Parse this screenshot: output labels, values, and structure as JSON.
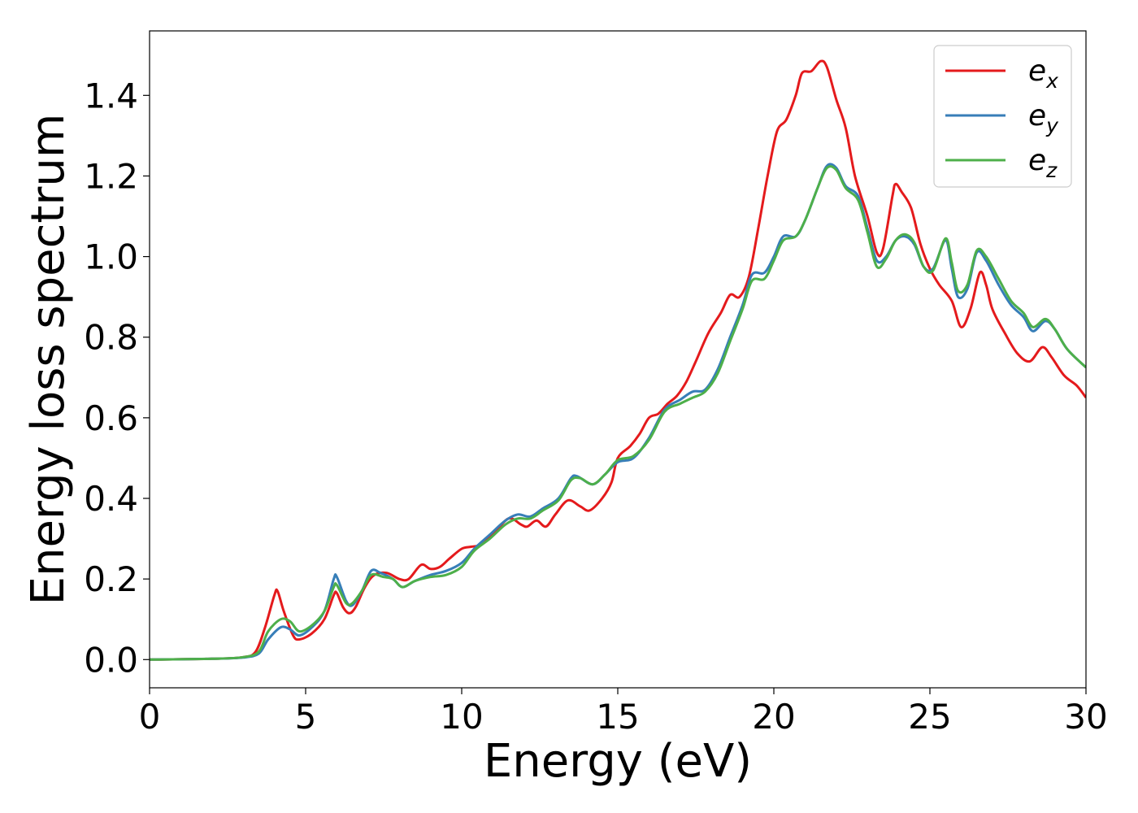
{
  "chart_data": {
    "type": "line",
    "title": "",
    "xlabel": "Energy (eV)",
    "ylabel": "Energy loss spectrum",
    "xlim": [
      0,
      30
    ],
    "ylim": [
      -0.07,
      1.56
    ],
    "xticks": [
      0,
      5,
      10,
      15,
      20,
      25,
      30
    ],
    "xtick_labels": [
      "0",
      "5",
      "10",
      "15",
      "20",
      "25",
      "30"
    ],
    "yticks": [
      0.0,
      0.2,
      0.4,
      0.6,
      0.8,
      1.0,
      1.2,
      1.4
    ],
    "ytick_labels": [
      "0.0",
      "0.2",
      "0.4",
      "0.6",
      "0.8",
      "1.0",
      "1.2",
      "1.4"
    ],
    "grid": false,
    "legend_position": "top-right",
    "series": [
      {
        "name": "e",
        "subscript": "x",
        "color": "#e41a1c",
        "points": [
          [
            0,
            0
          ],
          [
            2,
            0.002
          ],
          [
            3,
            0.006
          ],
          [
            3.4,
            0.02
          ],
          [
            3.7,
            0.08
          ],
          [
            4.0,
            0.16
          ],
          [
            4.1,
            0.17
          ],
          [
            4.3,
            0.12
          ],
          [
            4.6,
            0.06
          ],
          [
            4.8,
            0.05
          ],
          [
            5.2,
            0.065
          ],
          [
            5.6,
            0.1
          ],
          [
            5.9,
            0.16
          ],
          [
            6.0,
            0.165
          ],
          [
            6.2,
            0.13
          ],
          [
            6.4,
            0.115
          ],
          [
            6.6,
            0.13
          ],
          [
            6.9,
            0.18
          ],
          [
            7.2,
            0.21
          ],
          [
            7.6,
            0.215
          ],
          [
            8.0,
            0.2
          ],
          [
            8.3,
            0.2
          ],
          [
            8.7,
            0.235
          ],
          [
            9.0,
            0.225
          ],
          [
            9.3,
            0.23
          ],
          [
            9.6,
            0.25
          ],
          [
            10.0,
            0.275
          ],
          [
            10.3,
            0.28
          ],
          [
            10.6,
            0.285
          ],
          [
            11.0,
            0.31
          ],
          [
            11.5,
            0.35
          ],
          [
            11.9,
            0.335
          ],
          [
            12.1,
            0.33
          ],
          [
            12.4,
            0.345
          ],
          [
            12.7,
            0.33
          ],
          [
            13.0,
            0.36
          ],
          [
            13.4,
            0.395
          ],
          [
            13.8,
            0.38
          ],
          [
            14.1,
            0.37
          ],
          [
            14.5,
            0.4
          ],
          [
            14.8,
            0.44
          ],
          [
            15.0,
            0.5
          ],
          [
            15.4,
            0.53
          ],
          [
            15.7,
            0.56
          ],
          [
            16.0,
            0.6
          ],
          [
            16.3,
            0.61
          ],
          [
            16.6,
            0.635
          ],
          [
            16.9,
            0.655
          ],
          [
            17.2,
            0.69
          ],
          [
            17.5,
            0.74
          ],
          [
            17.9,
            0.81
          ],
          [
            18.3,
            0.86
          ],
          [
            18.6,
            0.905
          ],
          [
            18.9,
            0.9
          ],
          [
            19.2,
            0.95
          ],
          [
            19.5,
            1.07
          ],
          [
            19.8,
            1.2
          ],
          [
            20.1,
            1.31
          ],
          [
            20.4,
            1.34
          ],
          [
            20.7,
            1.4
          ],
          [
            20.9,
            1.455
          ],
          [
            21.2,
            1.46
          ],
          [
            21.5,
            1.485
          ],
          [
            21.7,
            1.47
          ],
          [
            22.0,
            1.39
          ],
          [
            22.3,
            1.32
          ],
          [
            22.6,
            1.2
          ],
          [
            23.0,
            1.1
          ],
          [
            23.3,
            1.01
          ],
          [
            23.5,
            1.02
          ],
          [
            23.8,
            1.15
          ],
          [
            23.9,
            1.18
          ],
          [
            24.1,
            1.16
          ],
          [
            24.4,
            1.12
          ],
          [
            24.7,
            1.03
          ],
          [
            25.0,
            0.97
          ],
          [
            25.3,
            0.93
          ],
          [
            25.7,
            0.89
          ],
          [
            26.0,
            0.825
          ],
          [
            26.3,
            0.87
          ],
          [
            26.6,
            0.96
          ],
          [
            26.8,
            0.93
          ],
          [
            27.0,
            0.87
          ],
          [
            27.4,
            0.81
          ],
          [
            27.8,
            0.76
          ],
          [
            28.2,
            0.74
          ],
          [
            28.6,
            0.775
          ],
          [
            28.9,
            0.75
          ],
          [
            29.3,
            0.705
          ],
          [
            29.7,
            0.68
          ],
          [
            30,
            0.65
          ]
        ]
      },
      {
        "name": "e",
        "subscript": "y",
        "color": "#377eb8",
        "points": [
          [
            0,
            0
          ],
          [
            2,
            0.002
          ],
          [
            3,
            0.005
          ],
          [
            3.5,
            0.015
          ],
          [
            3.8,
            0.05
          ],
          [
            4.2,
            0.08
          ],
          [
            4.5,
            0.075
          ],
          [
            4.8,
            0.06
          ],
          [
            5.2,
            0.08
          ],
          [
            5.6,
            0.12
          ],
          [
            5.9,
            0.2
          ],
          [
            6.0,
            0.205
          ],
          [
            6.3,
            0.145
          ],
          [
            6.5,
            0.135
          ],
          [
            6.8,
            0.17
          ],
          [
            7.1,
            0.22
          ],
          [
            7.4,
            0.215
          ],
          [
            7.8,
            0.2
          ],
          [
            8.1,
            0.18
          ],
          [
            8.5,
            0.195
          ],
          [
            9.0,
            0.21
          ],
          [
            9.5,
            0.22
          ],
          [
            10.0,
            0.24
          ],
          [
            10.4,
            0.275
          ],
          [
            10.9,
            0.31
          ],
          [
            11.4,
            0.345
          ],
          [
            11.8,
            0.36
          ],
          [
            12.2,
            0.355
          ],
          [
            12.6,
            0.375
          ],
          [
            13.1,
            0.4
          ],
          [
            13.5,
            0.45
          ],
          [
            13.7,
            0.455
          ],
          [
            14.2,
            0.435
          ],
          [
            14.6,
            0.46
          ],
          [
            15.0,
            0.49
          ],
          [
            15.5,
            0.5
          ],
          [
            16.0,
            0.55
          ],
          [
            16.5,
            0.62
          ],
          [
            17.0,
            0.645
          ],
          [
            17.4,
            0.665
          ],
          [
            17.8,
            0.67
          ],
          [
            18.2,
            0.72
          ],
          [
            18.6,
            0.8
          ],
          [
            19.0,
            0.88
          ],
          [
            19.3,
            0.955
          ],
          [
            19.7,
            0.96
          ],
          [
            20.0,
            1.0
          ],
          [
            20.3,
            1.05
          ],
          [
            20.7,
            1.05
          ],
          [
            21.0,
            1.09
          ],
          [
            21.4,
            1.17
          ],
          [
            21.7,
            1.225
          ],
          [
            22.0,
            1.22
          ],
          [
            22.3,
            1.175
          ],
          [
            22.7,
            1.15
          ],
          [
            23.0,
            1.07
          ],
          [
            23.3,
            0.99
          ],
          [
            23.6,
            1.0
          ],
          [
            23.9,
            1.04
          ],
          [
            24.2,
            1.05
          ],
          [
            24.5,
            1.03
          ],
          [
            24.8,
            0.975
          ],
          [
            25.1,
            0.97
          ],
          [
            25.5,
            1.04
          ],
          [
            25.7,
            0.97
          ],
          [
            25.9,
            0.9
          ],
          [
            26.2,
            0.92
          ],
          [
            26.5,
            1.01
          ],
          [
            26.8,
            0.99
          ],
          [
            27.2,
            0.93
          ],
          [
            27.6,
            0.88
          ],
          [
            28.0,
            0.85
          ],
          [
            28.3,
            0.815
          ],
          [
            28.7,
            0.84
          ],
          [
            29.0,
            0.82
          ],
          [
            29.4,
            0.77
          ],
          [
            30,
            0.725
          ]
        ]
      },
      {
        "name": "e",
        "subscript": "z",
        "color": "#4daf4a",
        "points": [
          [
            0,
            0
          ],
          [
            2,
            0.002
          ],
          [
            3,
            0.006
          ],
          [
            3.5,
            0.02
          ],
          [
            3.8,
            0.07
          ],
          [
            4.2,
            0.1
          ],
          [
            4.5,
            0.095
          ],
          [
            4.8,
            0.07
          ],
          [
            5.2,
            0.085
          ],
          [
            5.6,
            0.12
          ],
          [
            5.9,
            0.18
          ],
          [
            6.0,
            0.185
          ],
          [
            6.3,
            0.14
          ],
          [
            6.5,
            0.14
          ],
          [
            6.8,
            0.17
          ],
          [
            7.1,
            0.21
          ],
          [
            7.5,
            0.205
          ],
          [
            7.8,
            0.2
          ],
          [
            8.1,
            0.18
          ],
          [
            8.5,
            0.195
          ],
          [
            9.0,
            0.205
          ],
          [
            9.5,
            0.21
          ],
          [
            10.0,
            0.23
          ],
          [
            10.4,
            0.27
          ],
          [
            10.9,
            0.3
          ],
          [
            11.4,
            0.335
          ],
          [
            11.8,
            0.35
          ],
          [
            12.2,
            0.35
          ],
          [
            12.6,
            0.37
          ],
          [
            13.1,
            0.395
          ],
          [
            13.5,
            0.445
          ],
          [
            13.8,
            0.45
          ],
          [
            14.2,
            0.435
          ],
          [
            14.6,
            0.46
          ],
          [
            15.0,
            0.495
          ],
          [
            15.5,
            0.505
          ],
          [
            16.0,
            0.545
          ],
          [
            16.5,
            0.615
          ],
          [
            17.0,
            0.635
          ],
          [
            17.4,
            0.65
          ],
          [
            17.8,
            0.665
          ],
          [
            18.2,
            0.71
          ],
          [
            18.6,
            0.79
          ],
          [
            19.0,
            0.87
          ],
          [
            19.3,
            0.94
          ],
          [
            19.7,
            0.945
          ],
          [
            20.0,
            0.99
          ],
          [
            20.3,
            1.04
          ],
          [
            20.7,
            1.05
          ],
          [
            21.0,
            1.09
          ],
          [
            21.4,
            1.17
          ],
          [
            21.7,
            1.22
          ],
          [
            22.0,
            1.215
          ],
          [
            22.3,
            1.17
          ],
          [
            22.7,
            1.14
          ],
          [
            23.0,
            1.06
          ],
          [
            23.3,
            0.975
          ],
          [
            23.6,
            0.995
          ],
          [
            23.9,
            1.04
          ],
          [
            24.2,
            1.055
          ],
          [
            24.5,
            1.035
          ],
          [
            24.8,
            0.975
          ],
          [
            25.1,
            0.965
          ],
          [
            25.5,
            1.045
          ],
          [
            25.7,
            0.985
          ],
          [
            25.9,
            0.915
          ],
          [
            26.2,
            0.93
          ],
          [
            26.5,
            1.015
          ],
          [
            26.8,
            1.0
          ],
          [
            27.2,
            0.945
          ],
          [
            27.6,
            0.89
          ],
          [
            28.0,
            0.86
          ],
          [
            28.3,
            0.825
          ],
          [
            28.7,
            0.845
          ],
          [
            29.0,
            0.82
          ],
          [
            29.4,
            0.77
          ],
          [
            30,
            0.725
          ]
        ]
      }
    ]
  }
}
